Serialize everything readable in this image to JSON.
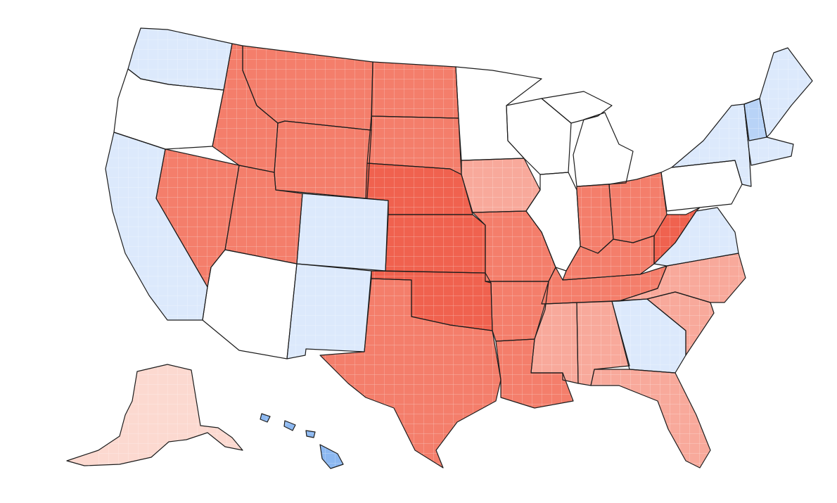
{
  "map": {
    "type": "choropleth",
    "scale": [
      "#e14b3b",
      "#f27462",
      "#f8a597",
      "#fcd6cd",
      "#ffffff",
      "#d7e6fb",
      "#b3cff7",
      "#8ab6f2",
      "#5f9ae8"
    ],
    "colors": {
      "strong_red": "#f0624f",
      "red": "#f47e6b",
      "light_red": "#f8a99b",
      "pale_red": "#fcd9d0",
      "white": "#ffffff",
      "pale_blue": "#dce9fc",
      "light_blue": "#b8d3f7",
      "blue": "#8cb8f1",
      "strong_blue": "#5f9ae8",
      "border": "#1c1c1c"
    },
    "regions": [
      {
        "id": "washington",
        "fill": "pale_blue"
      },
      {
        "id": "oregon",
        "fill": "white"
      },
      {
        "id": "california",
        "fill": "pale_blue"
      },
      {
        "id": "nevada",
        "fill": "red"
      },
      {
        "id": "idaho",
        "fill": "red"
      },
      {
        "id": "montana",
        "fill": "red"
      },
      {
        "id": "wyoming",
        "fill": "red"
      },
      {
        "id": "utah",
        "fill": "red"
      },
      {
        "id": "colorado",
        "fill": "pale_blue"
      },
      {
        "id": "arizona",
        "fill": "white"
      },
      {
        "id": "new-mexico",
        "fill": "pale_blue"
      },
      {
        "id": "north-dakota",
        "fill": "red"
      },
      {
        "id": "south-dakota",
        "fill": "red"
      },
      {
        "id": "nebraska",
        "fill": "strong_red"
      },
      {
        "id": "kansas",
        "fill": "strong_red"
      },
      {
        "id": "oklahoma",
        "fill": "strong_red"
      },
      {
        "id": "texas",
        "fill": "red"
      },
      {
        "id": "minnesota",
        "fill": "white"
      },
      {
        "id": "iowa",
        "fill": "light_red"
      },
      {
        "id": "missouri",
        "fill": "red"
      },
      {
        "id": "arkansas",
        "fill": "red"
      },
      {
        "id": "louisiana",
        "fill": "red"
      },
      {
        "id": "wisconsin",
        "fill": "white"
      },
      {
        "id": "illinois",
        "fill": "white"
      },
      {
        "id": "michigan",
        "fill": "white"
      },
      {
        "id": "indiana",
        "fill": "red"
      },
      {
        "id": "ohio",
        "fill": "red"
      },
      {
        "id": "kentucky",
        "fill": "red"
      },
      {
        "id": "tennessee",
        "fill": "red"
      },
      {
        "id": "mississippi",
        "fill": "light_red"
      },
      {
        "id": "alabama",
        "fill": "light_red"
      },
      {
        "id": "georgia",
        "fill": "pale_blue"
      },
      {
        "id": "florida",
        "fill": "light_red"
      },
      {
        "id": "south-carolina",
        "fill": "light_red"
      },
      {
        "id": "north-carolina",
        "fill": "light_red"
      },
      {
        "id": "virginia",
        "fill": "pale_blue"
      },
      {
        "id": "west-virginia",
        "fill": "strong_red"
      },
      {
        "id": "pennsylvania",
        "fill": "white"
      },
      {
        "id": "new-york",
        "fill": "pale_blue"
      },
      {
        "id": "new-england",
        "fill": "pale_blue"
      },
      {
        "id": "vermont",
        "fill": "light_blue"
      },
      {
        "id": "maine",
        "fill": "pale_blue"
      },
      {
        "id": "alaska",
        "fill": "pale_red"
      },
      {
        "id": "hawaii",
        "fill": "blue"
      }
    ]
  }
}
